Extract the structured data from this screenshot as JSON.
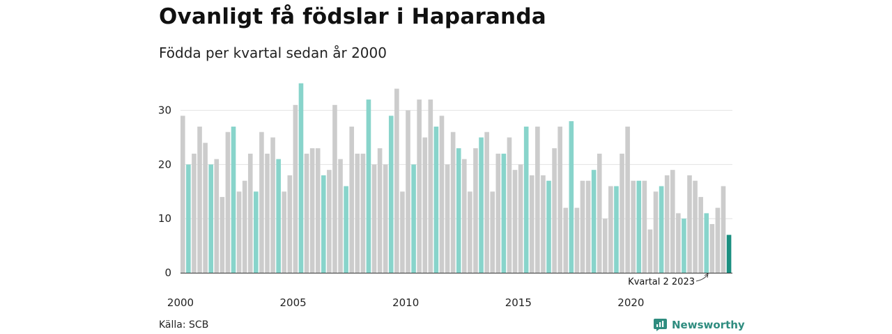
{
  "title": "Ovanligt få födslar i Haparanda",
  "subtitle": "Födda per kvartal sedan år 2000",
  "source": "Källa: SCB",
  "brand": {
    "name": "Newsworthy",
    "icon": "newsworthy-logo-icon"
  },
  "colors": {
    "other": "#cccccc",
    "quarter2": "#88d4cb",
    "latest": "#1b8f80",
    "grid": "#e2e2e2",
    "axis": "#333333"
  },
  "chart_data": {
    "type": "bar",
    "title": "Ovanligt få födslar i Haparanda",
    "subtitle": "Födda per kvartal sedan år 2000",
    "start": {
      "year": 2000,
      "quarter": 1
    },
    "highlight_quarter": 2,
    "values": [
      29,
      20,
      22,
      27,
      24,
      20,
      21,
      14,
      26,
      27,
      15,
      17,
      22,
      15,
      26,
      22,
      25,
      21,
      15,
      18,
      31,
      35,
      22,
      23,
      23,
      18,
      19,
      31,
      21,
      16,
      27,
      22,
      22,
      32,
      20,
      23,
      20,
      29,
      34,
      15,
      30,
      20,
      32,
      25,
      32,
      27,
      29,
      20,
      26,
      23,
      21,
      15,
      23,
      25,
      26,
      15,
      22,
      22,
      25,
      19,
      20,
      27,
      18,
      27,
      18,
      17,
      23,
      27,
      12,
      28,
      12,
      17,
      17,
      19,
      22,
      10,
      16,
      16,
      22,
      27,
      17,
      17,
      17,
      8,
      15,
      16,
      18,
      19,
      11,
      10,
      18,
      17,
      14,
      11,
      9,
      12,
      16,
      7
    ],
    "x_tick_labels": [
      "2000",
      "2005",
      "2010",
      "2015",
      "2020"
    ],
    "y_ticks": [
      0,
      10,
      20,
      30
    ],
    "ylim": [
      0,
      35
    ],
    "grid": true,
    "annotation": {
      "text": "Kvartal 2 2023",
      "target": "2023 Q2"
    }
  }
}
